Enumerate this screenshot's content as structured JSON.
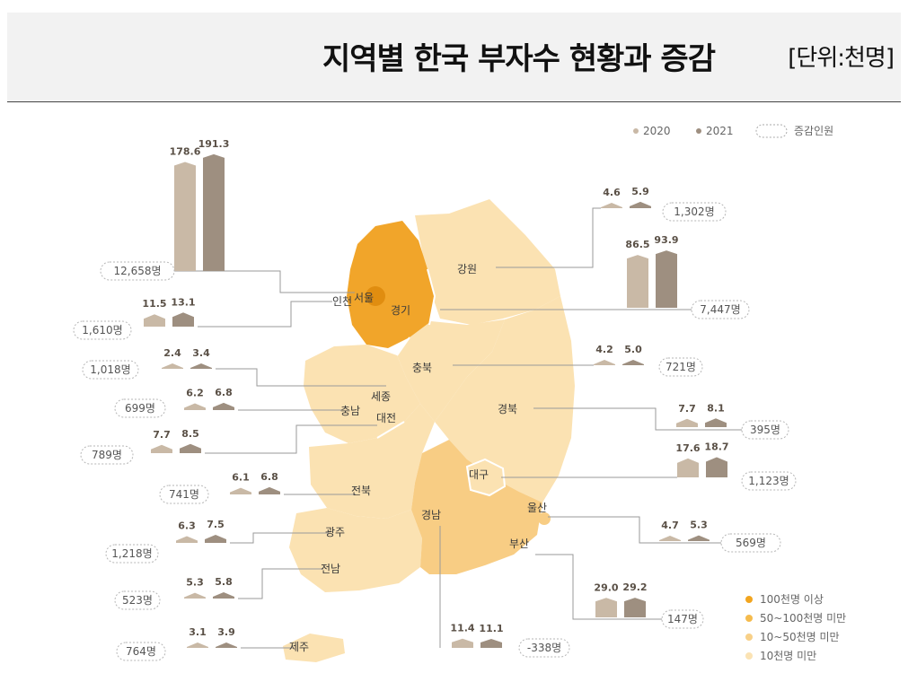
{
  "header": {
    "title": "지역별 한국 부자수 현황과 증감",
    "unit": "[단위:천명]"
  },
  "legend": {
    "series_2020": "2020",
    "series_2021": "2021",
    "change": "증감인원"
  },
  "tier_legend": [
    {
      "label": "100천명 이상",
      "color": "#f2a51f"
    },
    {
      "label": "50~100천명 미만",
      "color": "#f5bb4d"
    },
    {
      "label": "10~50천명 미만",
      "color": "#f8d088"
    },
    {
      "label": "10천명 미만",
      "color": "#fbe3b4"
    }
  ],
  "colors": {
    "bar_2020": "#c9b9a6",
    "bar_2021": "#9e8f80",
    "leader": "#9a9a9a"
  },
  "chart_data": {
    "type": "bar",
    "series": [
      {
        "name": "2020",
        "values": [
          178.6,
          11.5,
          4.6,
          86.5,
          2.4,
          6.2,
          7.7,
          4.2,
          7.7,
          17.6,
          6.1,
          4.7,
          6.3,
          5.3,
          29.0,
          11.4,
          3.1
        ]
      },
      {
        "name": "2021",
        "values": [
          191.3,
          13.1,
          5.9,
          93.9,
          3.4,
          6.8,
          8.5,
          5.0,
          8.1,
          18.7,
          6.8,
          5.3,
          7.5,
          5.8,
          29.2,
          11.1,
          3.9
        ]
      }
    ],
    "regions": [
      {
        "id": "seoul",
        "name": "서울",
        "change": "12,658명"
      },
      {
        "id": "incheon",
        "name": "인천",
        "change": "1,610명"
      },
      {
        "id": "gangwon",
        "name": "강원",
        "change": "1,302명"
      },
      {
        "id": "gyeonggi",
        "name": "경기",
        "change": "7,447명"
      },
      {
        "id": "sejong",
        "name": "세종",
        "change": "1,018명"
      },
      {
        "id": "chungnam",
        "name": "충남",
        "change": "699명"
      },
      {
        "id": "daejeon",
        "name": "대전",
        "change": "789명"
      },
      {
        "id": "chungbuk",
        "name": "충북",
        "change": "721명"
      },
      {
        "id": "gyeongbuk",
        "name": "경북",
        "change": "395명"
      },
      {
        "id": "daegu",
        "name": "대구",
        "change": "1,123명"
      },
      {
        "id": "jeonbuk",
        "name": "전북",
        "change": "741명"
      },
      {
        "id": "ulsan",
        "name": "울산",
        "change": "569명"
      },
      {
        "id": "gwangju",
        "name": "광주",
        "change": "1,218명"
      },
      {
        "id": "jeonnam",
        "name": "전남",
        "change": "523명"
      },
      {
        "id": "busan",
        "name": "부산",
        "change": "147명"
      },
      {
        "id": "gyeongnam",
        "name": "경남",
        "change": "-338명"
      },
      {
        "id": "jeju",
        "name": "제주",
        "change": "764명"
      }
    ]
  }
}
